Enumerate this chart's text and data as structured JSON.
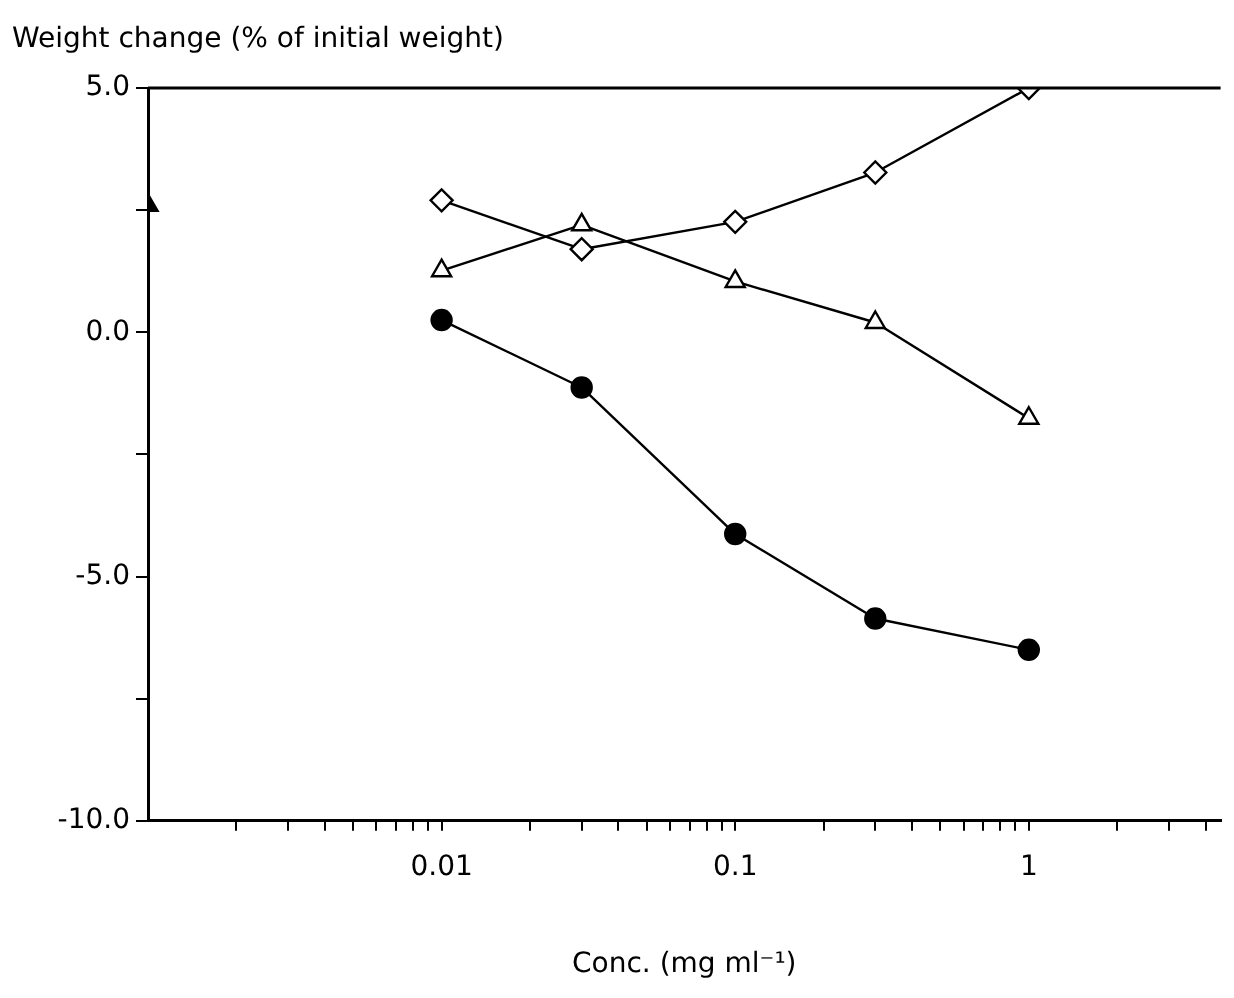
{
  "chart_data": {
    "type": "line",
    "xlabel": "Conc. (mg ml⁻¹)",
    "ylabel": "Weight change (% of initial weight)",
    "log": "x",
    "xlim": [
      0.001,
      4.5
    ],
    "xticks": [
      {
        "value": 0.002,
        "label": null
      },
      {
        "value": 0.003,
        "label": null
      },
      {
        "value": 0.004,
        "label": null
      },
      {
        "value": 0.005,
        "label": null
      },
      {
        "value": 0.006,
        "label": null
      },
      {
        "value": 0.007,
        "label": null
      },
      {
        "value": 0.008,
        "label": null
      },
      {
        "value": 0.009,
        "label": null
      },
      0.01,
      {
        "value": 0.02,
        "label": null
      },
      {
        "value": 0.03,
        "label": null
      },
      {
        "value": 0.04,
        "label": null
      },
      {
        "value": 0.05,
        "label": null
      },
      {
        "value": 0.06,
        "label": null
      },
      {
        "value": 0.07,
        "label": null
      },
      {
        "value": 0.08,
        "label": null
      },
      {
        "value": 0.09,
        "label": null
      },
      0.1,
      {
        "value": 0.2,
        "label": null
      },
      {
        "value": 0.3,
        "label": null
      },
      {
        "value": 0.4,
        "label": null
      },
      {
        "value": 0.5,
        "label": null
      },
      {
        "value": 0.6,
        "label": null
      },
      {
        "value": 0.7,
        "label": null
      },
      {
        "value": 0.8,
        "label": null
      },
      {
        "value": 0.9,
        "label": null
      },
      1,
      {
        "value": 2,
        "label": null
      },
      {
        "value": 3,
        "label": null
      },
      {
        "value": 4,
        "label": null
      }
    ],
    "ylim": [
      -10,
      5
    ],
    "yticks": [
      {
        "value": -10,
        "label": "-10.0"
      },
      {
        "value": -7.5,
        "label": null
      },
      {
        "value": -5,
        "label": "-5.0"
      },
      {
        "value": -2.5,
        "label": null
      },
      {
        "value": 0,
        "label": "0.0"
      },
      {
        "value": 2.5,
        "label": null
      },
      {
        "value": 5,
        "label": "5.0"
      }
    ],
    "grid": false,
    "legend": false,
    "line_style": "solid",
    "x": [
      0.01,
      0.03,
      0.1,
      0.3,
      1
    ],
    "series": [
      {
        "color": "#000000",
        "marker": "diamond",
        "values": [
          2.7,
          1.7,
          2.26,
          3.27,
          5.0
        ]
      },
      {
        "color": "#000000",
        "marker": "triangle",
        "values": [
          1.26,
          2.2,
          1.04,
          0.2,
          -1.76
        ]
      },
      {
        "color": "#000000",
        "marker": "circle",
        "values": [
          0.25,
          -1.13,
          -4.13,
          -5.86,
          -6.5
        ]
      },
      {
        "type": "scatter",
        "color": "#000000",
        "marker": "triangle",
        "x": [
          0.001
        ],
        "values": [
          2.6
        ]
      }
    ]
  }
}
